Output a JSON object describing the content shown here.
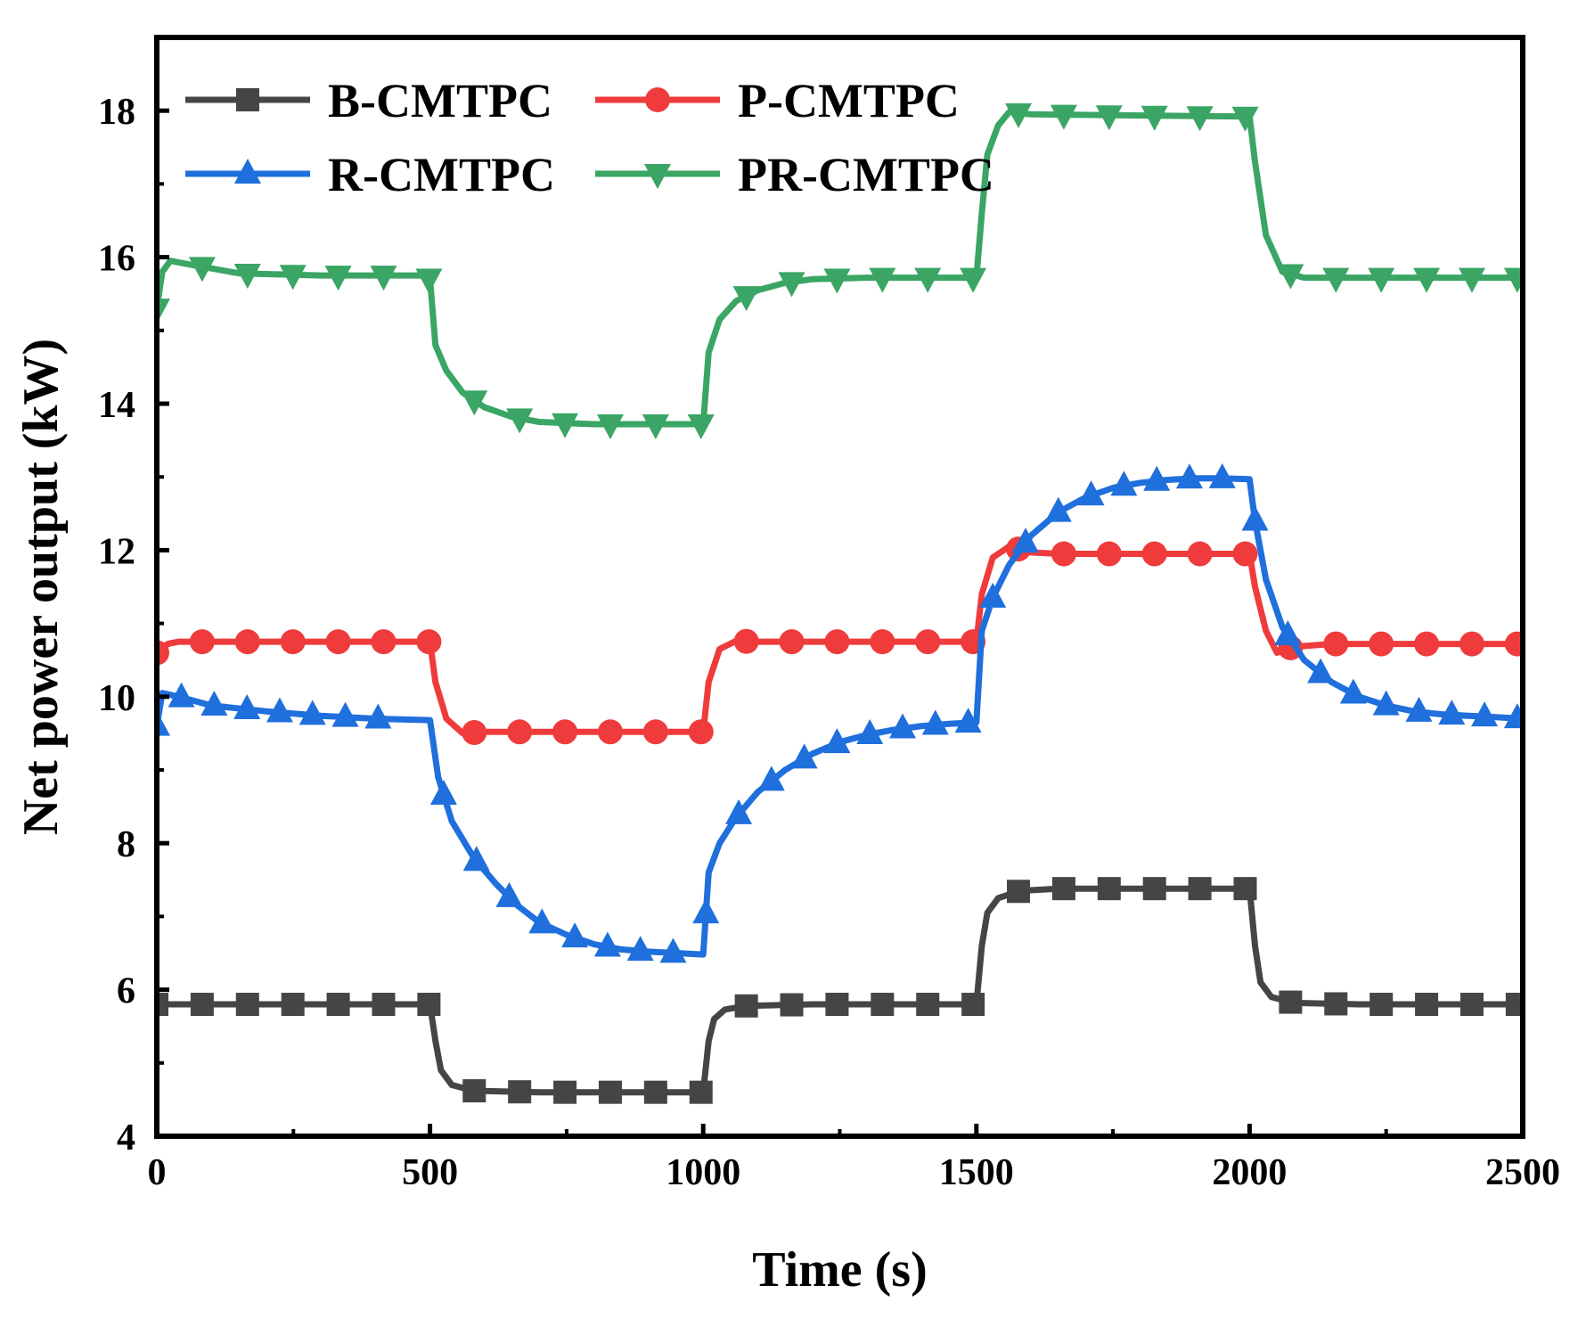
{
  "chart_data": {
    "type": "line",
    "title": "",
    "xlabel": "Time (s)",
    "ylabel": "Net power output (kW)",
    "xlim": [
      0,
      2500
    ],
    "ylim": [
      4,
      19
    ],
    "xticks": [
      0,
      500,
      1000,
      1500,
      2000,
      2500
    ],
    "yticks": [
      4,
      6,
      8,
      10,
      12,
      14,
      16,
      18
    ],
    "xtick_labels": [
      "0",
      "500",
      "1000",
      "1500",
      "2000",
      "2500"
    ],
    "ytick_labels": [
      "4",
      "6",
      "8",
      "10",
      "12",
      "14",
      "16",
      "18"
    ],
    "legend_position": "top-left",
    "series": [
      {
        "name": "B-CMTPC",
        "color": "#454545",
        "marker": "square",
        "x": [
          0,
          480,
          500,
          510,
          520,
          540,
          580,
          700,
          1000,
          1010,
          1020,
          1040,
          1080,
          1200,
          1500,
          1510,
          1520,
          1540,
          1580,
          1650,
          2000,
          2010,
          2020,
          2040,
          2080,
          2200,
          2500
        ],
        "y": [
          5.8,
          5.8,
          5.8,
          5.3,
          4.9,
          4.7,
          4.62,
          4.6,
          4.6,
          5.3,
          5.6,
          5.73,
          5.78,
          5.8,
          5.8,
          6.6,
          7.05,
          7.25,
          7.35,
          7.38,
          7.38,
          6.6,
          6.1,
          5.9,
          5.82,
          5.8,
          5.8
        ],
        "marker_x": [
          0,
          83,
          166,
          249,
          332,
          415,
          498,
          581,
          664,
          747,
          830,
          913,
          996,
          1079,
          1162,
          1245,
          1328,
          1411,
          1494,
          1577,
          1660,
          1743,
          1826,
          1909,
          1992,
          2075,
          2158,
          2241,
          2324,
          2407,
          2490
        ]
      },
      {
        "name": "P-CMTPC",
        "color": "#ef3b3b",
        "marker": "circle",
        "x": [
          0,
          20,
          40,
          490,
          500,
          510,
          530,
          560,
          600,
          1000,
          1010,
          1030,
          1060,
          1100,
          1500,
          1510,
          1530,
          1560,
          1600,
          1650,
          2000,
          2010,
          2030,
          2050,
          2080,
          2150,
          2500
        ],
        "y": [
          10.6,
          10.72,
          10.75,
          10.75,
          10.75,
          10.2,
          9.7,
          9.5,
          9.52,
          9.52,
          10.2,
          10.65,
          10.76,
          10.75,
          10.75,
          11.4,
          11.9,
          12.05,
          11.97,
          11.95,
          11.95,
          11.5,
          10.9,
          10.6,
          10.68,
          10.72,
          10.72
        ],
        "marker_x": [
          0,
          83,
          166,
          249,
          332,
          415,
          498,
          581,
          664,
          747,
          830,
          913,
          996,
          1079,
          1162,
          1245,
          1328,
          1411,
          1494,
          1577,
          1660,
          1743,
          1826,
          1909,
          1992,
          2075,
          2158,
          2241,
          2324,
          2407,
          2490
        ]
      },
      {
        "name": "R-CMTPC",
        "color": "#1f6fdc",
        "marker": "triangle-up",
        "x": [
          0,
          10,
          40,
          100,
          200,
          300,
          400,
          500,
          515,
          540,
          580,
          620,
          660,
          700,
          750,
          800,
          850,
          900,
          950,
          1000,
          1010,
          1030,
          1060,
          1100,
          1150,
          1200,
          1250,
          1300,
          1350,
          1400,
          1450,
          1500,
          1510,
          1530,
          1560,
          1600,
          1650,
          1700,
          1750,
          1800,
          1850,
          1900,
          1950,
          2000,
          2010,
          2030,
          2060,
          2100,
          2150,
          2200,
          2250,
          2300,
          2350,
          2400,
          2450,
          2500
        ],
        "y": [
          9.6,
          10.05,
          10.0,
          9.88,
          9.8,
          9.74,
          9.7,
          9.68,
          8.9,
          8.3,
          7.8,
          7.45,
          7.15,
          6.92,
          6.75,
          6.62,
          6.55,
          6.52,
          6.5,
          6.48,
          7.6,
          8.0,
          8.35,
          8.7,
          9.0,
          9.22,
          9.38,
          9.48,
          9.55,
          9.6,
          9.63,
          9.65,
          10.9,
          11.35,
          11.8,
          12.2,
          12.52,
          12.72,
          12.85,
          12.92,
          12.96,
          12.98,
          12.98,
          12.97,
          12.4,
          11.6,
          10.95,
          10.5,
          10.2,
          10.0,
          9.88,
          9.8,
          9.76,
          9.74,
          9.72,
          9.7
        ],
        "marker_x": [
          0,
          45,
          105,
          165,
          225,
          285,
          345,
          405,
          525,
          585,
          645,
          705,
          765,
          825,
          885,
          945,
          1005,
          1065,
          1125,
          1185,
          1245,
          1305,
          1365,
          1425,
          1485,
          1530,
          1590,
          1650,
          1710,
          1770,
          1830,
          1890,
          1950,
          2010,
          2070,
          2130,
          2190,
          2250,
          2310,
          2370,
          2430,
          2490
        ]
      },
      {
        "name": "PR-CMTPC",
        "color": "#3aa564",
        "marker": "triangle-down",
        "x": [
          0,
          10,
          25,
          60,
          150,
          300,
          490,
          500,
          510,
          530,
          560,
          600,
          650,
          700,
          800,
          1000,
          1010,
          1030,
          1060,
          1100,
          1150,
          1200,
          1300,
          1500,
          1510,
          1520,
          1540,
          1560,
          1600,
          2000,
          2010,
          2030,
          2060,
          2100,
          2200,
          2500
        ],
        "y": [
          15.3,
          15.8,
          15.95,
          15.9,
          15.78,
          15.75,
          15.75,
          15.7,
          14.8,
          14.45,
          14.15,
          13.95,
          13.82,
          13.75,
          13.72,
          13.72,
          14.7,
          15.15,
          15.4,
          15.55,
          15.65,
          15.7,
          15.72,
          15.72,
          16.6,
          17.4,
          17.8,
          17.98,
          17.95,
          17.92,
          17.3,
          16.3,
          15.8,
          15.72,
          15.72,
          15.72
        ],
        "marker_x": [
          0,
          83,
          166,
          249,
          332,
          415,
          498,
          581,
          664,
          747,
          830,
          913,
          996,
          1079,
          1162,
          1245,
          1328,
          1411,
          1494,
          1577,
          1660,
          1743,
          1826,
          1909,
          1992,
          2075,
          2158,
          2241,
          2324,
          2407,
          2490
        ]
      }
    ]
  }
}
